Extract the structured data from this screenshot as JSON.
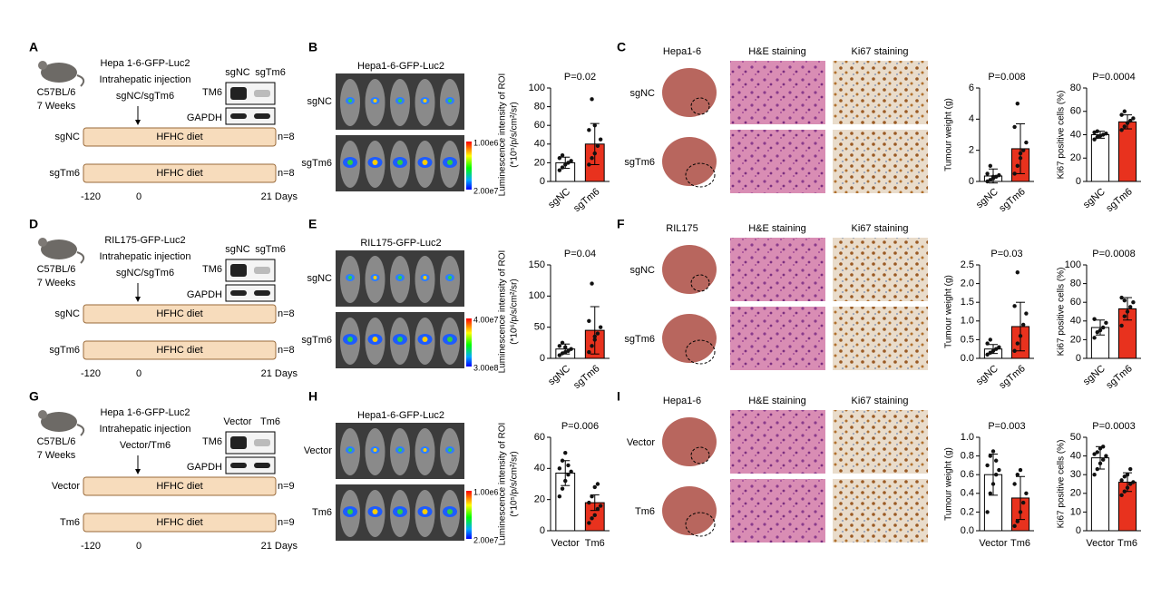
{
  "rows": [
    {
      "schematic": {
        "letter": "A",
        "strain": "C57BL/6",
        "age": "7 Weeks",
        "injection": [
          "Hepa 1-6-GFP-Luc2",
          "Intrahepatic injection",
          "sgNC/sgTm6"
        ],
        "blot_lanes": [
          "sgNC",
          "sgTm6"
        ],
        "blot_rows": [
          "TM6",
          "GAPDH"
        ],
        "groups": [
          {
            "label": "sgNC",
            "diet": "HFHC diet",
            "n": "n=8"
          },
          {
            "label": "sgTm6",
            "diet": "HFHC diet",
            "n": "n=8"
          }
        ],
        "timeline": [
          "-120",
          "0",
          "21 Days"
        ]
      },
      "imaging": {
        "letter": "B",
        "title": "Hepa1-6-GFP-Luc2",
        "rows": [
          "sgNC",
          "sgTm6"
        ],
        "scale": [
          "1.00e6",
          "2.00e7"
        ]
      },
      "histology": {
        "letter": "C",
        "title": "Hepa1-6",
        "columns": [
          "H&E staining",
          "Ki67 staining"
        ],
        "rows": [
          "sgNC",
          "sgTm6"
        ]
      }
    },
    {
      "schematic": {
        "letter": "D",
        "strain": "C57BL/6",
        "age": "7 Weeks",
        "injection": [
          "RIL175-GFP-Luc2",
          "Intrahepatic injection",
          "sgNC/sgTm6"
        ],
        "blot_lanes": [
          "sgNC",
          "sgTm6"
        ],
        "blot_rows": [
          "TM6",
          "GAPDH"
        ],
        "groups": [
          {
            "label": "sgNC",
            "diet": "HFHC diet",
            "n": "n=8"
          },
          {
            "label": "sgTm6",
            "diet": "HFHC diet",
            "n": "n=8"
          }
        ],
        "timeline": [
          "-120",
          "0",
          "21 Days"
        ]
      },
      "imaging": {
        "letter": "E",
        "title": "RIL175-GFP-Luc2",
        "rows": [
          "sgNC",
          "sgTm6"
        ],
        "scale": [
          "4.00e7",
          "3.00e8"
        ]
      },
      "histology": {
        "letter": "F",
        "title": "RIL175",
        "columns": [
          "H&E staining",
          "Ki67 staining"
        ],
        "rows": [
          "sgNC",
          "sgTm6"
        ]
      }
    },
    {
      "schematic": {
        "letter": "G",
        "strain": "C57BL/6",
        "age": "7 Weeks",
        "injection": [
          "Hepa 1-6-GFP-Luc2",
          "Intrahepatic injection",
          "Vector/Tm6"
        ],
        "blot_lanes": [
          "Vector",
          "Tm6"
        ],
        "blot_rows": [
          "TM6",
          "GAPDH"
        ],
        "groups": [
          {
            "label": "Vector",
            "diet": "HFHC diet",
            "n": "n=9"
          },
          {
            "label": "Tm6",
            "diet": "HFHC diet",
            "n": "n=9"
          }
        ],
        "timeline": [
          "-120",
          "0",
          "21 Days"
        ]
      },
      "imaging": {
        "letter": "H",
        "title": "Hepa1-6-GFP-Luc2",
        "rows": [
          "Vector",
          "Tm6"
        ],
        "scale": [
          "1.00e6",
          "2.00e7"
        ]
      },
      "histology": {
        "letter": "I",
        "title": "Hepa1-6",
        "columns": [
          "H&E staining",
          "Ki67 staining"
        ],
        "rows": [
          "Vector",
          "Tm6"
        ]
      }
    }
  ],
  "chart_data": [
    {
      "type": "bar",
      "title": "P=0.02",
      "ylabel": [
        "Luminescence intensity of ROI",
        "(*10⁵/p/s/cm²/sr)"
      ],
      "categories": [
        "sgNC",
        "sgTm6"
      ],
      "values": [
        20,
        40
      ],
      "errors": [
        6,
        22
      ],
      "points": [
        [
          12,
          15,
          18,
          20,
          22,
          25,
          28
        ],
        [
          18,
          25,
          30,
          38,
          45,
          55,
          88,
          60
        ]
      ],
      "colors": [
        "#ffffff",
        "#e8321e"
      ],
      "ylim": [
        0,
        100
      ],
      "yticks": [
        0,
        20,
        40,
        60,
        80,
        100
      ]
    },
    {
      "type": "bar",
      "title": "P=0.008",
      "ylabel": [
        "Tumour weight (g)"
      ],
      "categories": [
        "sgNC",
        "sgTm6"
      ],
      "values": [
        0.35,
        2.1
      ],
      "errors": [
        0.45,
        1.6
      ],
      "points": [
        [
          0,
          0.1,
          0.2,
          0.3,
          0.4,
          0.5,
          1.0,
          0.3
        ],
        [
          0.5,
          1.0,
          1.5,
          2.0,
          2.5,
          3.5,
          5.0,
          1.8
        ]
      ],
      "colors": [
        "#ffffff",
        "#e8321e"
      ],
      "ylim": [
        0,
        6
      ],
      "yticks": [
        0,
        2,
        4,
        6
      ]
    },
    {
      "type": "bar",
      "title": "P=0.0004",
      "ylabel": [
        "Ki67 positive cells (%)"
      ],
      "categories": [
        "sgNC",
        "sgTm6"
      ],
      "values": [
        40,
        51
      ],
      "errors": [
        3,
        6
      ],
      "points": [
        [
          36,
          38,
          39,
          40,
          41,
          42,
          43
        ],
        [
          44,
          47,
          50,
          52,
          54,
          57,
          60
        ]
      ],
      "colors": [
        "#ffffff",
        "#e8321e"
      ],
      "ylim": [
        0,
        80
      ],
      "yticks": [
        0,
        20,
        40,
        60,
        80
      ]
    },
    {
      "type": "bar",
      "title": "P=0.04",
      "ylabel": [
        "Luminescence intensity of ROI",
        "(*10⁶/p/s/cm²/sr)"
      ],
      "categories": [
        "sgNC",
        "sgTm6"
      ],
      "values": [
        15,
        45
      ],
      "errors": [
        8,
        38
      ],
      "points": [
        [
          5,
          8,
          10,
          12,
          15,
          20,
          25,
          18
        ],
        [
          10,
          20,
          30,
          40,
          50,
          60,
          120,
          35
        ]
      ],
      "colors": [
        "#ffffff",
        "#e8321e"
      ],
      "ylim": [
        0,
        150
      ],
      "yticks": [
        0,
        50,
        100,
        150
      ]
    },
    {
      "type": "bar",
      "title": "P=0.03",
      "ylabel": [
        "Tumour weight (g)"
      ],
      "categories": [
        "sgNC",
        "sgTm6"
      ],
      "values": [
        0.25,
        0.85
      ],
      "errors": [
        0.12,
        0.65
      ],
      "points": [
        [
          0.1,
          0.15,
          0.2,
          0.25,
          0.3,
          0.4,
          0.5
        ],
        [
          0.2,
          0.4,
          0.6,
          0.9,
          1.2,
          1.4,
          2.3
        ]
      ],
      "colors": [
        "#ffffff",
        "#e8321e"
      ],
      "ylim": [
        0,
        2.5
      ],
      "yticks": [
        {
          "value": 0,
          "label": "0.0"
        },
        {
          "value": 0.5,
          "label": "0.5"
        },
        {
          "value": 1,
          "label": "1.0"
        },
        {
          "value": 1.5,
          "label": "1.5"
        },
        {
          "value": 2,
          "label": "2.0"
        },
        {
          "value": 2.5,
          "label": "2.5"
        }
      ]
    },
    {
      "type": "bar",
      "title": "P=0.0008",
      "ylabel": [
        "Ki67 positive cells (%)"
      ],
      "categories": [
        "sgNC",
        "sgTm6"
      ],
      "values": [
        33,
        53
      ],
      "errors": [
        8,
        12
      ],
      "points": [
        [
          22,
          28,
          30,
          33,
          38,
          42
        ],
        [
          35,
          45,
          50,
          55,
          60,
          65,
          62
        ]
      ],
      "colors": [
        "#ffffff",
        "#e8321e"
      ],
      "ylim": [
        0,
        100
      ],
      "yticks": [
        0,
        20,
        40,
        60,
        80,
        100
      ]
    },
    {
      "type": "bar",
      "title": "P=0.006",
      "ylabel": [
        "Luminescence intensity of ROI",
        "(*10⁵/p/s/cm²/sr)"
      ],
      "categories": [
        "Vector",
        "Tm6"
      ],
      "values": [
        37,
        18
      ],
      "errors": [
        8,
        5
      ],
      "points": [
        [
          22,
          27,
          32,
          36,
          38,
          40,
          45,
          50,
          42
        ],
        [
          5,
          8,
          10,
          14,
          16,
          18,
          22,
          28,
          30
        ]
      ],
      "colors": [
        "#ffffff",
        "#e8321e"
      ],
      "ylim": [
        0,
        60
      ],
      "yticks": [
        0,
        20,
        40,
        60
      ]
    },
    {
      "type": "bar",
      "title": "P=0.003",
      "ylabel": [
        "Tumour weight (g)"
      ],
      "categories": [
        "Vector",
        "Tm6"
      ],
      "values": [
        0.6,
        0.35
      ],
      "errors": [
        0.22,
        0.23
      ],
      "points": [
        [
          0.2,
          0.4,
          0.5,
          0.6,
          0.65,
          0.7,
          0.8,
          0.85,
          0.75
        ],
        [
          0.05,
          0.1,
          0.2,
          0.3,
          0.4,
          0.5,
          0.6,
          0.65
        ]
      ],
      "colors": [
        "#ffffff",
        "#e8321e"
      ],
      "ylim": [
        0,
        1
      ],
      "yticks": [
        {
          "value": 0,
          "label": "0.0"
        },
        {
          "value": 0.2,
          "label": "0.2"
        },
        {
          "value": 0.4,
          "label": "0.4"
        },
        {
          "value": 0.6,
          "label": "0.6"
        },
        {
          "value": 0.8,
          "label": "0.8"
        },
        {
          "value": 1,
          "label": "1.0"
        }
      ]
    },
    {
      "type": "bar",
      "title": "P=0.0003",
      "ylabel": [
        "Ki67 positive cells (%)"
      ],
      "categories": [
        "Vector",
        "Tm6"
      ],
      "values": [
        39,
        26
      ],
      "errors": [
        6,
        5
      ],
      "points": [
        [
          30,
          33,
          36,
          38,
          40,
          41,
          42,
          44,
          45
        ],
        [
          19,
          21,
          23,
          25,
          26,
          27,
          29,
          30,
          33
        ]
      ],
      "colors": [
        "#ffffff",
        "#e8321e"
      ],
      "ylim": [
        0,
        50
      ],
      "yticks": [
        0,
        10,
        20,
        30,
        40,
        50
      ]
    }
  ]
}
